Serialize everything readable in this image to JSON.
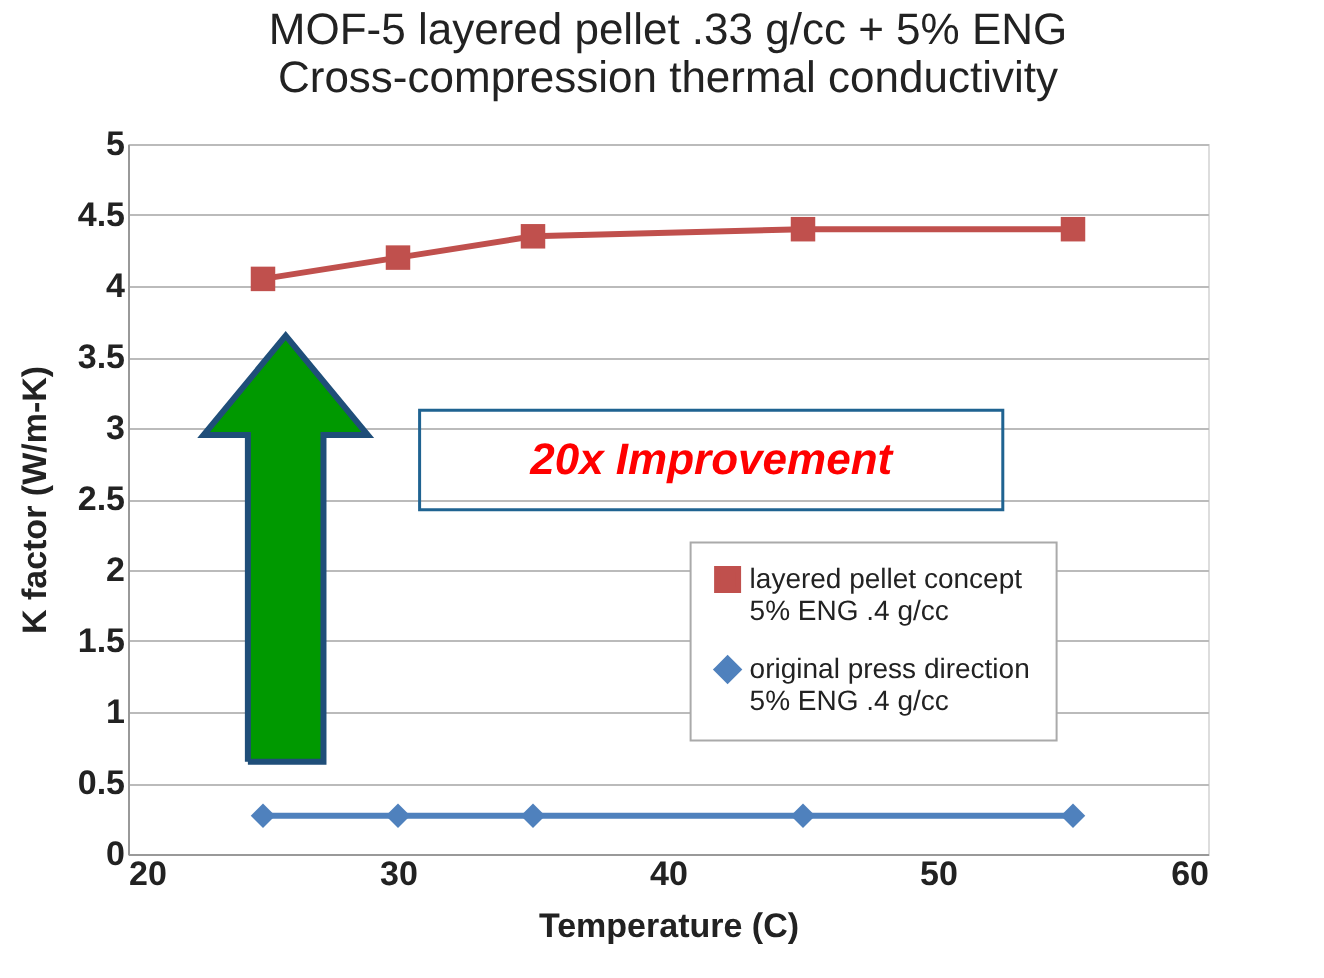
{
  "chart_data": {
    "type": "line",
    "title": "MOF-5 layered pellet  .33 g/cc + 5% ENG\nCross-compression thermal conductivity",
    "xlabel": "Temperature (C)",
    "ylabel": "K factor (W/m-K)",
    "x": [
      25,
      30,
      35,
      45,
      55
    ],
    "series": [
      {
        "name": "layered pellet concept\n5% ENG .4 g/cc",
        "color": "#c0504d",
        "marker": "square",
        "values": [
          4.05,
          4.2,
          4.35,
          4.4,
          4.4
        ]
      },
      {
        "name": "original press direction\n5%  ENG .4 g/cc",
        "color": "#4f81bd",
        "marker": "diamond",
        "values": [
          0.27,
          0.27,
          0.27,
          0.27,
          0.27
        ]
      }
    ],
    "xlim": [
      20,
      60
    ],
    "xticks": [
      20,
      30,
      40,
      50,
      60
    ],
    "ylim": [
      0,
      5
    ],
    "yticks": [
      0,
      0.5,
      1,
      1.5,
      2,
      2.5,
      3,
      3.5,
      4,
      4.5,
      5
    ],
    "grid": "y",
    "legend": "bottom right",
    "line_style": "solid",
    "annotations": [
      "20x Improvement"
    ]
  }
}
